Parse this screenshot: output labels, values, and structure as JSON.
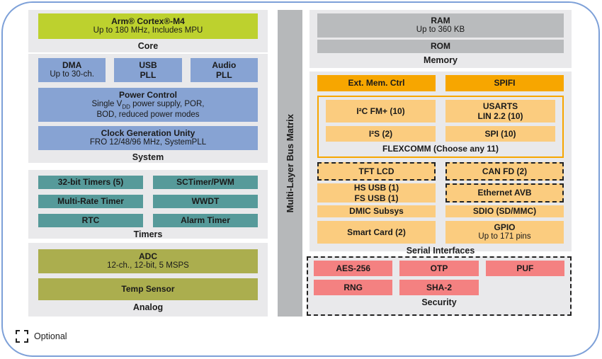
{
  "colors": {
    "frame_blue": "#7da0d8",
    "section_bg": "#e9e9eb",
    "core_green": "#bdd12e",
    "system_blue": "#87a3d3",
    "timers_teal": "#569a9a",
    "analog_olive": "#abae4e",
    "bus_gray": "#b6b8ba",
    "memory_gray": "#b9bbbd",
    "orange": "#f7a600",
    "light_orange": "#fbcc7f",
    "security_pink": "#f48181"
  },
  "bus_matrix": {
    "label": "Multi-Layer Bus Matrix"
  },
  "core": {
    "label": "Core",
    "cortex": {
      "title": "Arm® Cortex®-M4",
      "subtitle": "Up to 180 MHz, Includes MPU"
    }
  },
  "system": {
    "label": "System",
    "dma": {
      "title": "DMA",
      "subtitle": "Up to 30-ch."
    },
    "usb_pll": {
      "line1": "USB",
      "line2": "PLL"
    },
    "audio_pll": {
      "line1": "Audio",
      "line2": "PLL"
    },
    "power": {
      "title": "Power Control",
      "sub_pre": "Single V",
      "sub_sub": "DD",
      "sub_post": " power supply, POR,",
      "sub_line2": "BOD, reduced power modes"
    },
    "clock": {
      "title": "Clock Generation Unity",
      "subtitle": "FRO 12/48/96 MHz, SystemPLL"
    }
  },
  "timers": {
    "label": "Timers",
    "items": [
      "32-bit Timers (5)",
      "SCTimer/PWM",
      "Multi-Rate Timer",
      "WWDT",
      "RTC",
      "Alarm Timer"
    ]
  },
  "analog": {
    "label": "Analog",
    "adc": {
      "title": "ADC",
      "subtitle": "12-ch., 12-bit, 5 MSPS"
    },
    "temp": {
      "title": "Temp Sensor"
    }
  },
  "memory": {
    "label": "Memory",
    "ram": {
      "title": "RAM",
      "subtitle": "Up to 360 KB"
    },
    "rom": {
      "title": "ROM"
    }
  },
  "serial": {
    "label": "Serial Interfaces",
    "ext_mem": "Ext. Mem. Ctrl",
    "spifi": "SPIFI",
    "flexcomm": {
      "label": "FLEXCOMM (Choose any 11)",
      "i2c": "I²C FM+ (10)",
      "usarts_line1": "USARTS",
      "usarts_line2": "LIN 2.2 (10)",
      "i2s": "I²S (2)",
      "spi": "SPI (10)"
    },
    "tft_lcd": "TFT LCD",
    "can_fd": "CAN FD (2)",
    "hs_usb_line1": "HS USB (1)",
    "hs_usb_line2": "FS USB (1)",
    "ethernet": "Ethernet AVB",
    "dmic": "DMIC Subsys",
    "sdio": "SDIO (SD/MMC)",
    "smart_card": "Smart Card (2)",
    "gpio": {
      "title": "GPIO",
      "subtitle": "Up to 171 pins"
    }
  },
  "security": {
    "label": "Security",
    "items": [
      "AES-256",
      "OTP",
      "PUF",
      "RNG",
      "SHA-2"
    ]
  },
  "legend": {
    "optional_label": "Optional"
  }
}
